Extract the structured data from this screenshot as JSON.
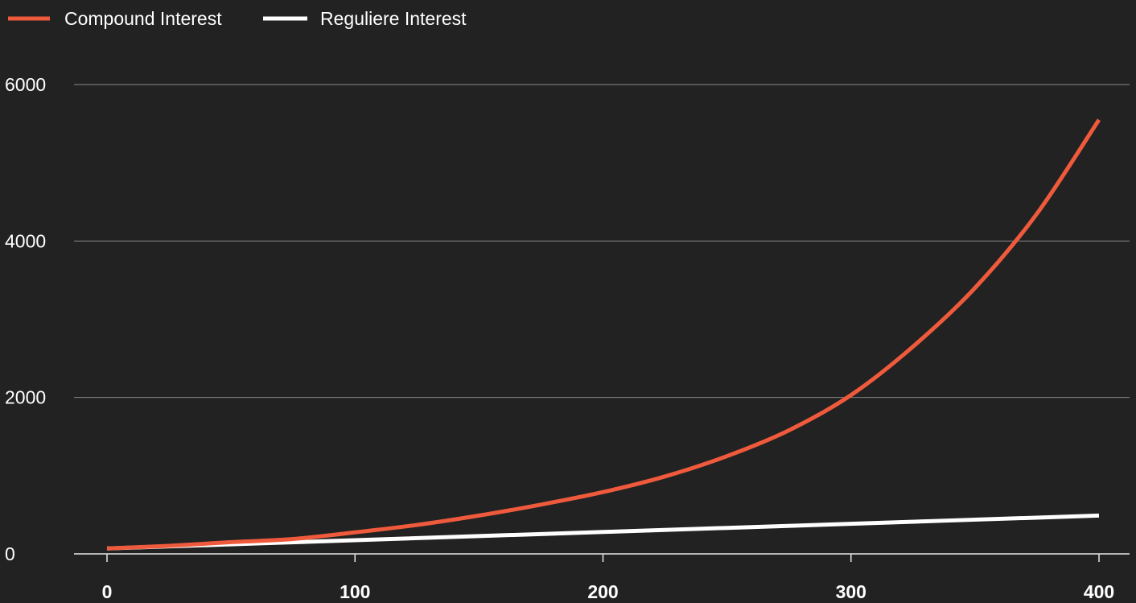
{
  "chart_data": {
    "type": "line",
    "title": "",
    "xlabel": "",
    "ylabel": "",
    "xlim": [
      0,
      400
    ],
    "ylim": [
      0,
      6000
    ],
    "x_ticks": [
      "0",
      "100",
      "200",
      "300",
      "400"
    ],
    "y_ticks": [
      "0",
      "2000",
      "4000",
      "6000"
    ],
    "grid": "horizontal",
    "legend_position": "top-left",
    "series": [
      {
        "name": "Compound Interest",
        "color": "#f05a3c",
        "x": [
          0,
          25,
          50,
          75,
          100,
          125,
          150,
          175,
          200,
          225,
          250,
          275,
          300,
          325,
          350,
          375,
          400
        ],
        "y": [
          70,
          103,
          150,
          190,
          275,
          370,
          490,
          630,
          790,
          990,
          1250,
          1580,
          2030,
          2650,
          3400,
          4350,
          5550
        ]
      },
      {
        "name": "Reguliere Interest",
        "color": "#ffffff",
        "x": [
          0,
          100,
          200,
          300,
          400
        ],
        "y": [
          70,
          175,
          280,
          385,
          490
        ]
      }
    ]
  }
}
